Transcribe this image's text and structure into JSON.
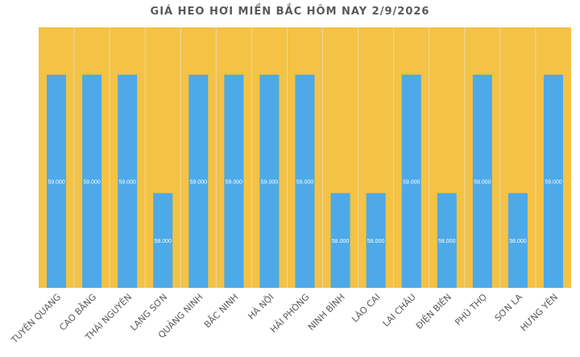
{
  "chart_data": {
    "type": "bar",
    "title": "GIÁ HEO HƠI MIỀN BẮC HÔM NAY 2/9/2026",
    "xlabel": "",
    "ylabel": "",
    "categories": [
      "TUYÊN QUANG",
      "CAO BẰNG",
      "THÁI NGUYÊN",
      "LẠNG SƠN",
      "QUẢNG NINH",
      "BẮC NINH",
      "HÀ NỘI",
      "HẢI PHÒNG",
      "NINH BÌNH",
      "LÀO CAI",
      "LAI CHÂU",
      "ĐIỆN BIÊN",
      "PHÚ THỌ",
      "SƠN LA",
      "HƯNG YÊN"
    ],
    "values": [
      59000,
      59000,
      59000,
      58000,
      59000,
      59000,
      59000,
      59000,
      58000,
      58000,
      59000,
      58000,
      59000,
      58000,
      59000
    ],
    "data_labels": [
      "59.000",
      "59.000",
      "59.000",
      "58.000",
      "59.000",
      "59.000",
      "59.000",
      "59.000",
      "58.000",
      "58.000",
      "59.000",
      "58.000",
      "59.000",
      "58.000",
      "59.000"
    ],
    "ylim": [
      57200,
      59400
    ],
    "grid": true,
    "colors": {
      "bar": "#4DA9E8",
      "plot_background": "#F4C244",
      "gridline": "#E8D9A8",
      "label_text": "#ffffff",
      "axis_text": "#595959"
    }
  }
}
